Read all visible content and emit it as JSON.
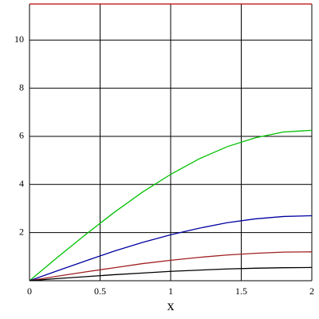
{
  "chart_data": {
    "type": "line",
    "x_label": "x",
    "x": [
      0,
      0.2,
      0.4,
      0.6,
      0.8,
      1,
      1.2,
      1.4,
      1.6,
      1.8,
      2
    ],
    "series": [
      {
        "color": "#00c000",
        "values": [
          0,
          0.98,
          1.93,
          2.84,
          3.68,
          4.42,
          5.06,
          5.57,
          5.94,
          6.18,
          6.25
        ]
      },
      {
        "color": "#0000a0",
        "values": [
          0,
          0.42,
          0.83,
          1.23,
          1.59,
          1.91,
          2.18,
          2.41,
          2.57,
          2.67,
          2.7
        ]
      },
      {
        "color": "#a02020",
        "values": [
          0,
          0.19,
          0.37,
          0.54,
          0.71,
          0.85,
          0.97,
          1.07,
          1.14,
          1.19,
          1.2
        ]
      },
      {
        "color": "#000000",
        "values": [
          0,
          0.09,
          0.17,
          0.25,
          0.32,
          0.39,
          0.44,
          0.49,
          0.52,
          0.54,
          0.55
        ]
      },
      {
        "color": "#c00000",
        "values": [
          11.5,
          11.5,
          11.5,
          11.5,
          11.5,
          11.5,
          11.5,
          11.5,
          11.5,
          11.5,
          11.5
        ]
      }
    ],
    "xlim": [
      0,
      2
    ],
    "ylim": [
      0,
      11.5
    ],
    "xticks": [
      0,
      0.5,
      1,
      1.5,
      2
    ],
    "yticks": [
      2,
      4,
      6,
      8,
      10
    ],
    "grid": true
  }
}
